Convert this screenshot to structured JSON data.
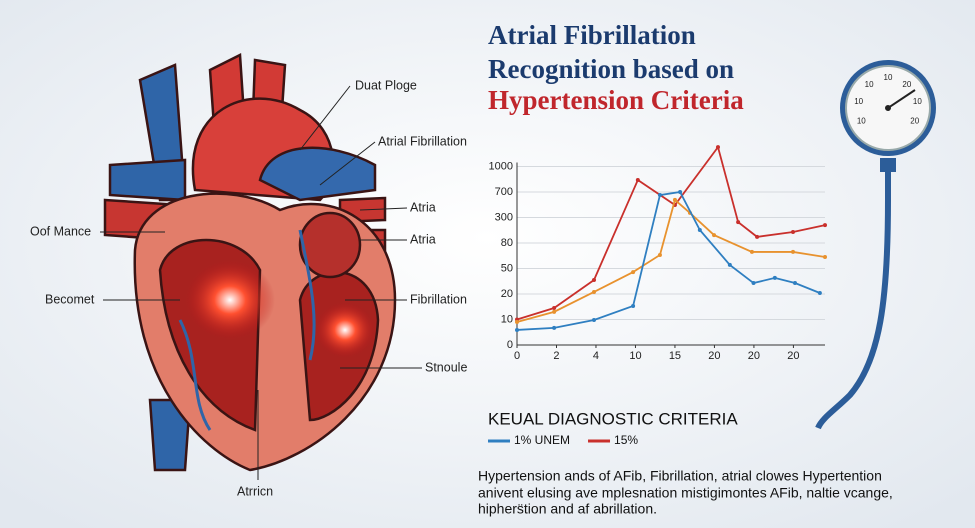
{
  "title_lines": [
    "Atrial Fibrillation",
    "Recognition based on",
    "Hypertension Criteria"
  ],
  "heart_labels": [
    "Duat Ploge",
    "Atrial Fibrillation",
    "Atria",
    "Atria",
    "Oof Mance",
    "Becomet",
    "Fibrillation",
    "Stnoule",
    "Atrricn"
  ],
  "gauge_labels": [
    "10",
    "10",
    "10",
    "10",
    "20",
    "10",
    "20"
  ],
  "chart_data": {
    "type": "line",
    "xlim": [
      0,
      7.8
    ],
    "xticks": [
      {
        "value": 0,
        "label": "0"
      },
      {
        "value": 1,
        "label": "2"
      },
      {
        "value": 2,
        "label": "4"
      },
      {
        "value": 3,
        "label": "10"
      },
      {
        "value": 4,
        "label": "15"
      },
      {
        "value": 5,
        "label": "20"
      },
      {
        "value": 6,
        "label": "20"
      },
      {
        "value": 7,
        "label": "20"
      }
    ],
    "ylim": [
      0,
      8
    ],
    "yticks": [
      {
        "value": 0,
        "label": "0"
      },
      {
        "value": 1,
        "label": "10"
      },
      {
        "value": 2,
        "label": "20"
      },
      {
        "value": 3,
        "label": "50"
      },
      {
        "value": 4,
        "label": "80"
      },
      {
        "value": 5,
        "label": "300"
      },
      {
        "value": 6,
        "label": "700"
      },
      {
        "value": 7,
        "label": "1000"
      }
    ],
    "grid": true,
    "series": [
      {
        "name": "15%",
        "color": "#c9302c",
        "x": [
          0,
          0.94,
          1.95,
          3.06,
          4,
          5.09,
          5.6,
          6.08,
          6.99,
          7.8
        ],
        "values": [
          1.0,
          1.45,
          2.55,
          6.47,
          5.49,
          7.76,
          4.82,
          4.24,
          4.43,
          4.7
        ]
      },
      {
        "color": "#e8922e",
        "x": [
          0,
          0.94,
          1.95,
          2.94,
          3.62,
          4,
          4.38,
          4.99,
          5.95,
          6.99,
          7.8
        ],
        "values": [
          0.9,
          1.3,
          2.08,
          2.86,
          3.53,
          5.69,
          5.18,
          4.31,
          3.65,
          3.65,
          3.45
        ]
      },
      {
        "name": "1% UNEM",
        "color": "#2f7fc1",
        "x": [
          0,
          0.94,
          1.95,
          2.94,
          3.62,
          4.13,
          4.63,
          5.39,
          5.99,
          6.53,
          7.04,
          7.67
        ],
        "values": [
          0.59,
          0.67,
          0.98,
          1.53,
          5.88,
          6.0,
          4.51,
          3.14,
          2.43,
          2.63,
          2.43,
          2.04
        ]
      }
    ]
  },
  "criteria_heading": "KEUAL DIAGNOSTIC CRITERIA",
  "description_lines": [
    "Hypertension ands of AFib, Fibrillation, atrial clowes Hypertention",
    "anivent elusing ave mplesnation mistigimontes AFib, naltie vcange,",
    "hiphers̈tion and af abrillation."
  ]
}
